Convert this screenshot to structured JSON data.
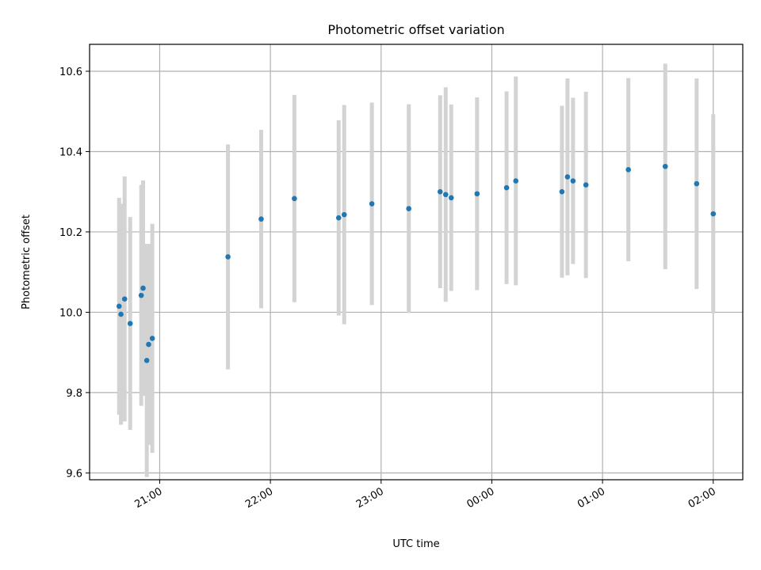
{
  "chart_data": {
    "type": "scatter",
    "title": "Photometric offset variation",
    "xlabel": "UTC time",
    "ylabel": "Photometric offset",
    "x_tick_labels": [
      "21:00",
      "22:00",
      "23:00",
      "00:00",
      "01:00",
      "02:00"
    ],
    "y_tick_labels": [
      "9.6",
      "9.8",
      "10.0",
      "10.2",
      "10.4",
      "10.6"
    ],
    "y_ticks": [
      9.6,
      9.8,
      10.0,
      10.2,
      10.4,
      10.6
    ],
    "xlim": [
      "20:22",
      "02:16"
    ],
    "ylim": [
      9.583,
      10.667
    ],
    "grid": true,
    "colors": {
      "points": "#1f77b4",
      "error_bars": "#d3d3d3",
      "grid": "#b0b0b0"
    },
    "series": [
      {
        "points": [
          {
            "x": "20:38",
            "y": 10.015,
            "err": 0.27
          },
          {
            "x": "20:39",
            "y": 9.995,
            "err": 0.275
          },
          {
            "x": "20:41",
            "y": 10.033,
            "err": 0.305
          },
          {
            "x": "20:44",
            "y": 9.972,
            "err": 0.265
          },
          {
            "x": "20:50",
            "y": 10.042,
            "err": 0.275
          },
          {
            "x": "20:51",
            "y": 10.06,
            "err": 0.268
          },
          {
            "x": "20:53",
            "y": 9.88,
            "err": 0.29
          },
          {
            "x": "20:54",
            "y": 9.92,
            "err": 0.25
          },
          {
            "x": "20:56",
            "y": 9.935,
            "err": 0.285
          },
          {
            "x": "21:37",
            "y": 10.138,
            "err": 0.28
          },
          {
            "x": "21:55",
            "y": 10.232,
            "err": 0.222
          },
          {
            "x": "22:13",
            "y": 10.283,
            "err": 0.258
          },
          {
            "x": "22:37",
            "y": 10.235,
            "err": 0.243
          },
          {
            "x": "22:40",
            "y": 10.243,
            "err": 0.273
          },
          {
            "x": "22:55",
            "y": 10.27,
            "err": 0.252
          },
          {
            "x": "23:15",
            "y": 10.258,
            "err": 0.26
          },
          {
            "x": "23:32",
            "y": 10.3,
            "err": 0.24
          },
          {
            "x": "23:35",
            "y": 10.293,
            "err": 0.267
          },
          {
            "x": "23:38",
            "y": 10.285,
            "err": 0.232
          },
          {
            "x": "23:52",
            "y": 10.295,
            "err": 0.24
          },
          {
            "x": "00:08",
            "y": 10.31,
            "err": 0.24
          },
          {
            "x": "00:13",
            "y": 10.327,
            "err": 0.26
          },
          {
            "x": "00:38",
            "y": 10.3,
            "err": 0.214
          },
          {
            "x": "00:41",
            "y": 10.337,
            "err": 0.245
          },
          {
            "x": "00:44",
            "y": 10.327,
            "err": 0.207
          },
          {
            "x": "00:51",
            "y": 10.317,
            "err": 0.232
          },
          {
            "x": "01:14",
            "y": 10.355,
            "err": 0.228
          },
          {
            "x": "01:34",
            "y": 10.363,
            "err": 0.256
          },
          {
            "x": "01:51",
            "y": 10.32,
            "err": 0.262
          },
          {
            "x": "02:00",
            "y": 10.245,
            "err": 0.248
          }
        ]
      }
    ]
  }
}
